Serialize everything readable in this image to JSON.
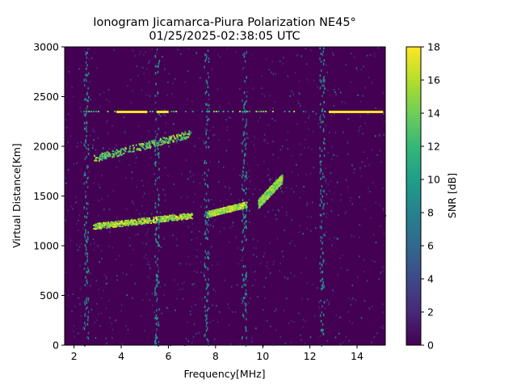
{
  "chart_data": {
    "type": "heatmap",
    "title": "Ionogram Jicamarca-Piura Polarization NE45°",
    "subtitle": "01/25/2025-02:38:05 UTC",
    "xlabel": "Frequency[MHz]",
    "ylabel": "Virtual Distance[Km]",
    "xlim": [
      1.6,
      15.2
    ],
    "ylim": [
      0,
      3000
    ],
    "xticks": [
      2,
      4,
      6,
      8,
      10,
      12,
      14
    ],
    "yticks": [
      0,
      500,
      1000,
      1500,
      2000,
      2500,
      3000
    ],
    "colorbar": {
      "label": "SNR [dB]",
      "range": [
        0,
        18
      ],
      "ticks": [
        0,
        2,
        4,
        6,
        8,
        10,
        12,
        14,
        16,
        18
      ],
      "colormap": "viridis"
    },
    "colors": [
      "#440154",
      "#482878",
      "#3e4989",
      "#31688e",
      "#26828e",
      "#1f9e89",
      "#35b779",
      "#6ece58",
      "#b5de2b",
      "#fde725"
    ],
    "features": [
      {
        "name": "main-trace-low",
        "x": [
          2.8,
          7.0
        ],
        "y": [
          1200,
          1310
        ],
        "snr": 18
      },
      {
        "name": "main-trace-rising",
        "x": [
          7.6,
          9.3
        ],
        "y": [
          1320,
          1420
        ],
        "snr": 18
      },
      {
        "name": "main-trace-cusp",
        "x": [
          9.8,
          10.8
        ],
        "y": [
          1430,
          1680
        ],
        "snr": 17
      },
      {
        "name": "upper-echo",
        "x": [
          2.8,
          6.9
        ],
        "y": [
          1880,
          2130
        ],
        "snr": 16
      },
      {
        "name": "horizontal-line",
        "x": [
          2.3,
          15.0
        ],
        "y": [
          2350,
          2350
        ],
        "snr": 18
      },
      {
        "name": "vertical-interference",
        "x": [
          2.5,
          12.5
        ],
        "y": [
          0,
          3000
        ],
        "snr": 5
      }
    ]
  }
}
